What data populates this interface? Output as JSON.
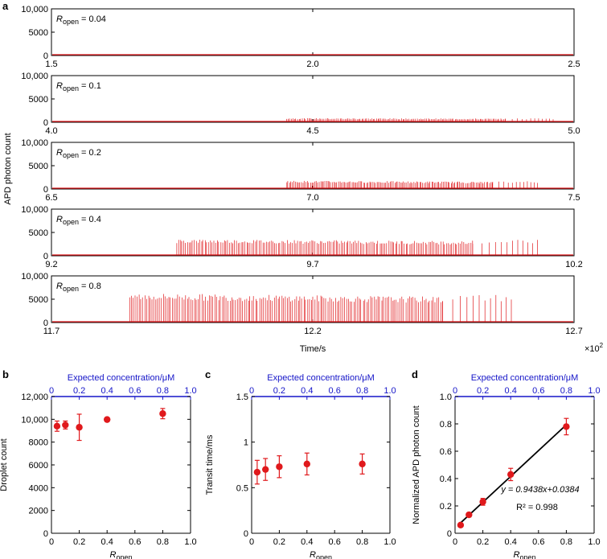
{
  "colors": {
    "data": "#e0191c",
    "blue": "#1515c8",
    "axis": "#000000"
  },
  "panel_labels": {
    "a": "a",
    "b": "b",
    "c": "c",
    "d": "d"
  },
  "panel_a": {
    "ylabel": "APD photon count",
    "xlabel": "Time/s",
    "multiplier": "×10",
    "multiplier_exp": "2",
    "rows": [
      {
        "r_text": "= 0.04",
        "ticks": [
          "1.5",
          "2.0",
          "2.5"
        ],
        "spike_start": 0.04,
        "spike_end": 0.97,
        "amp": 170,
        "n": 150
      },
      {
        "r_text": "= 0.1",
        "ticks": [
          "4.0",
          "4.5",
          "5.0"
        ],
        "spike_start": 0.45,
        "spike_end": 0.96,
        "amp": 850,
        "n": 140
      },
      {
        "r_text": "= 0.2",
        "ticks": [
          "6.5",
          "7.0",
          "7.5"
        ],
        "spike_start": 0.45,
        "spike_end": 0.93,
        "amp": 1700,
        "n": 140
      },
      {
        "r_text": "= 0.4",
        "ticks": [
          "9.2",
          "9.7",
          "10.2"
        ],
        "spike_start": 0.24,
        "spike_end": 0.93,
        "amp": 3400,
        "n": 170
      },
      {
        "r_text": "= 0.8",
        "ticks": [
          "11.7",
          "12.2",
          "12.7"
        ],
        "spike_start": 0.15,
        "spike_end": 0.88,
        "amp": 6000,
        "n": 170
      }
    ],
    "y_ticks": [
      "0",
      "5000",
      "10,000"
    ]
  },
  "r_symbol": "R",
  "r_subscript": "open",
  "top_axis_label": "Expected concentration/μM",
  "chart_data": [
    {
      "type": "line",
      "title": "",
      "note": "Five time traces of APD photon count; spikes are droplet bursts, amplitude scales with Ropen",
      "series": [
        {
          "name": "Ropen = 0.04",
          "x_range": [
            150,
            250
          ],
          "peak_count": 170
        },
        {
          "name": "Ropen = 0.1",
          "x_range": [
            400,
            500
          ],
          "peak_count": 850
        },
        {
          "name": "Ropen = 0.2",
          "x_range": [
            650,
            750
          ],
          "peak_count": 1700
        },
        {
          "name": "Ropen = 0.4",
          "x_range": [
            920,
            1020
          ],
          "peak_count": 3400
        },
        {
          "name": "Ropen = 0.8",
          "x_range": [
            1170,
            1270
          ],
          "peak_count": 6000
        }
      ],
      "xlabel": "Time/s",
      "ylabel": "APD photon count",
      "ylim": [
        0,
        10000
      ]
    },
    {
      "type": "scatter",
      "xlabel": "Ropen",
      "ylabel": "Droplet count",
      "xlim": [
        0,
        1.0
      ],
      "ylim": [
        0,
        12000
      ],
      "x_ticks": [
        "0",
        "0.2",
        "0.4",
        "0.6",
        "0.8",
        "1.0"
      ],
      "y_ticks": [
        "0",
        "2000",
        "4000",
        "6000",
        "8000",
        "10,000",
        "12,000"
      ],
      "top_ticks": [
        "0",
        "0.2",
        "0.4",
        "0.6",
        "0.8",
        "1.0"
      ],
      "points": [
        {
          "x": 0.04,
          "y": 9400,
          "err": 450
        },
        {
          "x": 0.1,
          "y": 9500,
          "err": 350
        },
        {
          "x": 0.2,
          "y": 9300,
          "err": 1150
        },
        {
          "x": 0.4,
          "y": 9980,
          "err": 120
        },
        {
          "x": 0.8,
          "y": 10500,
          "err": 450
        }
      ]
    },
    {
      "type": "scatter",
      "xlabel": "Ropen",
      "ylabel": "Transit time/ms",
      "xlim": [
        0,
        1.0
      ],
      "ylim": [
        0,
        1.5
      ],
      "x_ticks": [
        "0",
        "0.2",
        "0.4",
        "0.6",
        "0.8",
        "1.0"
      ],
      "y_ticks": [
        "0",
        "0.5",
        "1",
        "1.5"
      ],
      "top_ticks": [
        "0",
        "0.2",
        "0.4",
        "0.6",
        "0.8",
        "1.0"
      ],
      "points": [
        {
          "x": 0.04,
          "y": 0.67,
          "err": 0.13
        },
        {
          "x": 0.1,
          "y": 0.7,
          "err": 0.12
        },
        {
          "x": 0.2,
          "y": 0.73,
          "err": 0.12
        },
        {
          "x": 0.4,
          "y": 0.76,
          "err": 0.12
        },
        {
          "x": 0.8,
          "y": 0.76,
          "err": 0.11
        }
      ]
    },
    {
      "type": "scatter",
      "xlabel": "Ropen",
      "ylabel": "Normalized APD photon count",
      "xlim": [
        0,
        1.0
      ],
      "ylim": [
        0,
        1.0
      ],
      "x_ticks": [
        "0",
        "0.2",
        "0.4",
        "0.6",
        "0.8",
        "1.0"
      ],
      "y_ticks": [
        "0",
        "0.2",
        "0.4",
        "0.6",
        "0.8",
        "1.0"
      ],
      "top_ticks": [
        "0",
        "0.2",
        "0.4",
        "0.6",
        "0.8",
        "1.0"
      ],
      "points": [
        {
          "x": 0.04,
          "y": 0.06,
          "err": 0.01
        },
        {
          "x": 0.1,
          "y": 0.135,
          "err": 0.015
        },
        {
          "x": 0.2,
          "y": 0.23,
          "err": 0.025
        },
        {
          "x": 0.4,
          "y": 0.43,
          "err": 0.045
        },
        {
          "x": 0.8,
          "y": 0.78,
          "err": 0.06
        }
      ],
      "fit": {
        "slope": 0.9438,
        "intercept": 0.0384,
        "x_range": [
          0.04,
          0.8
        ]
      },
      "fit_equation": "y = 0.9438x+0.0384",
      "r_squared": "R² = 0.998"
    }
  ]
}
